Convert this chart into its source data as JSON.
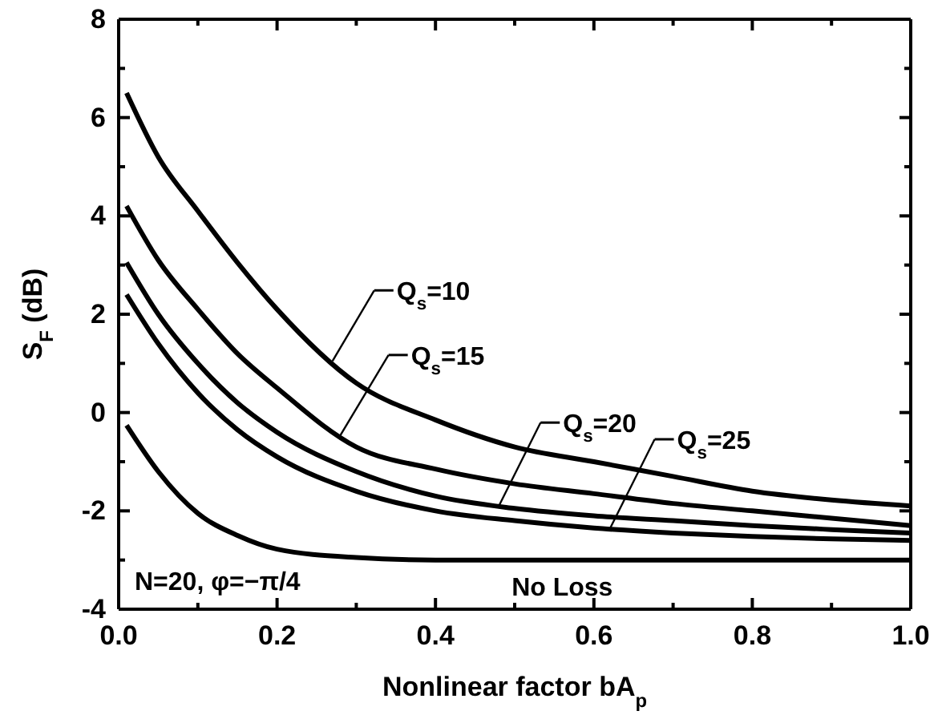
{
  "chart_data": {
    "type": "line",
    "xlabel": "Nonlinear factor bA$_{p}$",
    "ylabel": "S$_{F}$ (dB)",
    "x": [
      0.01,
      0.05,
      0.1,
      0.15,
      0.2,
      0.3,
      0.4,
      0.5,
      0.6,
      0.7,
      0.8,
      0.9,
      1.0
    ],
    "series": [
      {
        "name": "Q$_{s}$=10",
        "color": "#000000",
        "values": [
          6.5,
          5.2,
          4.1,
          3.05,
          2.1,
          0.6,
          -0.15,
          -0.7,
          -1.0,
          -1.3,
          -1.6,
          -1.78,
          -1.9
        ]
      },
      {
        "name": "Q$_{s}$=15",
        "color": "#000000",
        "values": [
          4.2,
          3.1,
          2.1,
          1.2,
          0.5,
          -0.7,
          -1.15,
          -1.45,
          -1.65,
          -1.85,
          -2.0,
          -2.15,
          -2.3
        ]
      },
      {
        "name": "Q$_{s}$=20",
        "color": "#000000",
        "values": [
          3.05,
          2.0,
          1.0,
          0.2,
          -0.4,
          -1.2,
          -1.7,
          -1.95,
          -2.1,
          -2.2,
          -2.3,
          -2.38,
          -2.45
        ]
      },
      {
        "name": "Q$_{s}$=25",
        "color": "#000000",
        "values": [
          2.4,
          1.4,
          0.4,
          -0.35,
          -0.9,
          -1.6,
          -2.0,
          -2.2,
          -2.35,
          -2.45,
          -2.52,
          -2.57,
          -2.6
        ]
      },
      {
        "name": "No Loss",
        "color": "#000000",
        "values": [
          -0.26,
          -1.2,
          -2.05,
          -2.5,
          -2.78,
          -2.95,
          -3.0,
          -3.0,
          -3.0,
          -3.0,
          -3.0,
          -3.0,
          -3.0
        ]
      }
    ],
    "xlim": [
      0,
      1
    ],
    "ylim": [
      -4,
      8
    ],
    "xticks": [
      {
        "value": 0,
        "label": "0.0"
      },
      {
        "value": 0.1,
        "label": null
      },
      {
        "value": 0.2,
        "label": "0.2"
      },
      {
        "value": 0.3,
        "label": null
      },
      {
        "value": 0.4,
        "label": "0.4"
      },
      {
        "value": 0.5,
        "label": null
      },
      {
        "value": 0.6,
        "label": "0.6"
      },
      {
        "value": 0.7,
        "label": null
      },
      {
        "value": 0.8,
        "label": "0.8"
      },
      {
        "value": 0.9,
        "label": null
      },
      {
        "value": 1,
        "label": "1.0"
      }
    ],
    "yticks": [
      -4,
      {
        "value": -3,
        "label": null
      },
      -2,
      {
        "value": -1,
        "label": null
      },
      0,
      {
        "value": 1,
        "label": null
      },
      2,
      {
        "value": 3,
        "label": null
      },
      4,
      {
        "value": 5,
        "label": null
      },
      6,
      {
        "value": 7,
        "label": null
      },
      8
    ],
    "annotations": [
      "N=20, φ=−π/4"
    ],
    "grid": false,
    "legend": "right",
    "marker": "none",
    "line_style": "solid"
  }
}
